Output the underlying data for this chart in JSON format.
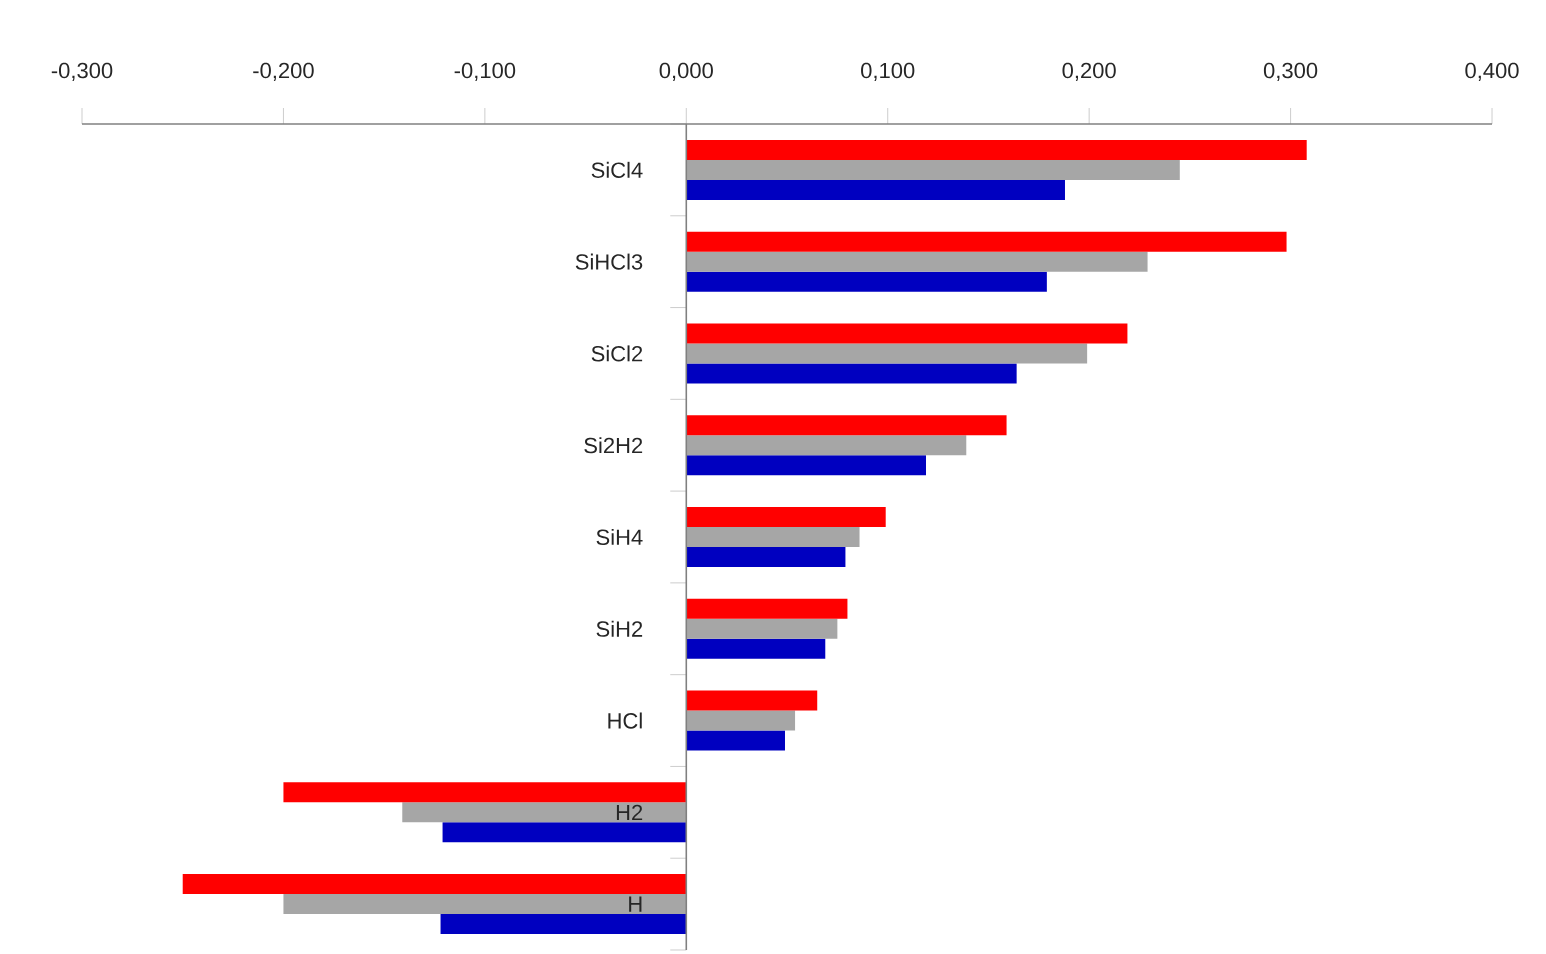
{
  "chart_data": {
    "type": "bar",
    "orientation": "horizontal",
    "categories": [
      "SiCl4",
      "SiHCl3",
      "SiCl2",
      "Si2H2",
      "SiH4",
      "SiH2",
      "HCl",
      "H2",
      "H"
    ],
    "series": [
      {
        "color": "#ff0000",
        "values": [
          0.308,
          0.298,
          0.219,
          0.159,
          0.099,
          0.08,
          0.065,
          -0.2,
          -0.25
        ]
      },
      {
        "color": "#a6a6a6",
        "values": [
          0.245,
          0.229,
          0.199,
          0.139,
          0.086,
          0.075,
          0.054,
          -0.141,
          -0.2
        ]
      },
      {
        "color": "#0000c0",
        "values": [
          0.188,
          0.179,
          0.164,
          0.119,
          0.079,
          0.069,
          0.049,
          -0.121,
          -0.122
        ]
      }
    ],
    "xlim": [
      -0.3,
      0.4
    ],
    "xticks": [
      {
        "value": -0.3,
        "label": "-0,300"
      },
      {
        "value": -0.2,
        "label": "-0,200"
      },
      {
        "value": -0.1,
        "label": "-0,100"
      },
      {
        "value": 0,
        "label": "0,000"
      },
      {
        "value": 0.1,
        "label": "0,100"
      },
      {
        "value": 0.2,
        "label": "0,200"
      },
      {
        "value": 0.3,
        "label": "0,300"
      },
      {
        "value": 0.4,
        "label": "0,400"
      }
    ],
    "grid": false
  }
}
